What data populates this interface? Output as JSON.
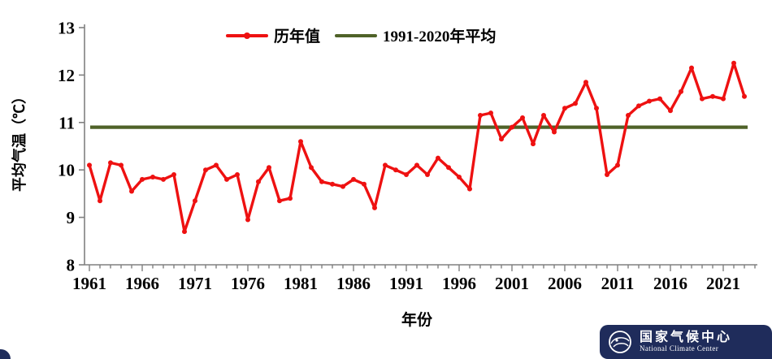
{
  "chart_data": {
    "type": "line",
    "title": "",
    "xlabel": "年份",
    "ylabel": "平均气温（℃）",
    "ylim": [
      8,
      13
    ],
    "y_ticks": [
      8,
      9,
      10,
      11,
      12,
      13
    ],
    "x_major_ticks": [
      1961,
      1966,
      1971,
      1976,
      1981,
      1986,
      1991,
      1996,
      2001,
      2006,
      2011,
      2016,
      2021
    ],
    "x_minor_tick_start": 1961,
    "x_minor_tick_end": 2024,
    "axis_color": "#808080",
    "grid": false,
    "legend_position": "top-center",
    "years": [
      1961,
      1962,
      1963,
      1964,
      1965,
      1966,
      1967,
      1968,
      1969,
      1970,
      1971,
      1972,
      1973,
      1974,
      1975,
      1976,
      1977,
      1978,
      1979,
      1980,
      1981,
      1982,
      1983,
      1984,
      1985,
      1986,
      1987,
      1988,
      1989,
      1990,
      1991,
      1992,
      1993,
      1994,
      1995,
      1996,
      1997,
      1998,
      1999,
      2000,
      2001,
      2002,
      2003,
      2004,
      2005,
      2006,
      2007,
      2008,
      2009,
      2010,
      2011,
      2012,
      2013,
      2014,
      2015,
      2016,
      2017,
      2018,
      2019,
      2020,
      2021,
      2022,
      2023
    ],
    "series": [
      {
        "name": "历年值",
        "type": "line-with-markers",
        "color": "#ee1111",
        "values": [
          10.1,
          9.35,
          10.15,
          10.1,
          9.55,
          9.8,
          9.85,
          9.8,
          9.9,
          8.7,
          9.35,
          10.0,
          10.1,
          9.8,
          9.9,
          8.95,
          9.75,
          10.05,
          9.35,
          9.4,
          10.6,
          10.05,
          9.75,
          9.7,
          9.65,
          9.8,
          9.7,
          9.2,
          10.1,
          10.0,
          9.9,
          10.1,
          9.9,
          10.25,
          10.05,
          9.85,
          9.6,
          11.15,
          11.2,
          10.65,
          10.9,
          11.1,
          10.55,
          11.15,
          10.8,
          11.3,
          11.4,
          11.85,
          11.3,
          9.9,
          10.1,
          11.15,
          11.35,
          11.45,
          11.5,
          11.25,
          11.65,
          12.15,
          11.5,
          11.55,
          11.5,
          12.25,
          11.55
        ]
      },
      {
        "name": "1991-2020年平均",
        "type": "constant-line",
        "color": "#4f6228",
        "value": 10.9
      }
    ]
  },
  "footer_logo": {
    "cn": "国家气候中心",
    "en": "National Climate Center",
    "bg_color": "#1f2c5b"
  }
}
